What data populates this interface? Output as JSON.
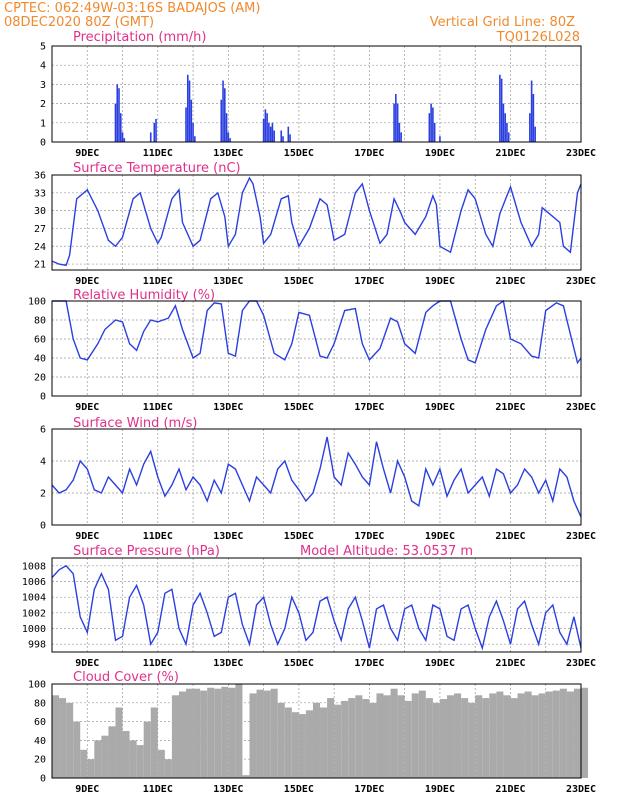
{
  "header": {
    "line1": "CPTEC:   062:49W-03:16S   BADAJOS (AM)",
    "line2": "08DEC2020 80Z (GMT)",
    "grid_note": "Vertical Grid Line: 80Z",
    "run_code": "TQ0126L028"
  },
  "colors": {
    "header": "#f08a2e",
    "title": "#e0308a",
    "series": "#2b3fe0",
    "cloud": "#aaaaaa",
    "grid": "#9a9a9a"
  },
  "chart_data": [
    {
      "id": "precip",
      "type": "bar",
      "title": "Precipitation (mm/h)",
      "ylim": [
        0,
        5
      ],
      "yticks": [
        "0",
        "1",
        "2",
        "3",
        "4",
        "5"
      ],
      "xlim": [
        8,
        23
      ],
      "xticks": [
        "9DEC",
        "11DEC",
        "13DEC",
        "15DEC",
        "17DEC",
        "19DEC",
        "21DEC",
        "23DEC"
      ],
      "x": [
        9.8,
        9.85,
        9.9,
        9.95,
        10.0,
        10.05,
        10.8,
        10.9,
        10.95,
        11.8,
        11.85,
        11.9,
        11.95,
        12.0,
        12.05,
        12.8,
        12.85,
        12.9,
        12.95,
        13.0,
        13.05,
        14.0,
        14.05,
        14.1,
        14.15,
        14.2,
        14.25,
        14.3,
        14.5,
        14.55,
        14.7,
        14.75,
        17.7,
        17.75,
        17.8,
        17.85,
        17.9,
        18.7,
        18.75,
        18.8,
        18.85,
        19.0,
        20.7,
        20.75,
        20.8,
        20.85,
        20.9,
        20.95,
        21.55,
        21.6,
        21.65,
        21.7
      ],
      "values": [
        2.0,
        3.0,
        2.8,
        1.5,
        0.5,
        0.2,
        0.5,
        1.0,
        1.2,
        1.8,
        3.5,
        3.2,
        2.2,
        1.0,
        0.3,
        2.2,
        3.2,
        2.8,
        1.5,
        0.5,
        0.2,
        1.2,
        1.7,
        1.5,
        1.0,
        0.8,
        1.0,
        0.6,
        0.6,
        0.3,
        0.8,
        0.4,
        2.0,
        2.5,
        2.0,
        1.0,
        0.5,
        1.5,
        2.0,
        1.8,
        1.0,
        0.3,
        3.5,
        3.3,
        2.0,
        1.5,
        1.0,
        0.5,
        1.5,
        3.2,
        2.5,
        0.8
      ]
    },
    {
      "id": "temp",
      "type": "line",
      "title": "Surface Temperature (nC)",
      "ylim": [
        20,
        36
      ],
      "yticks": [
        "21",
        "24",
        "27",
        "30",
        "33",
        "36"
      ],
      "ytick_values": [
        21,
        24,
        27,
        30,
        33,
        36
      ],
      "xlim": [
        8,
        23
      ],
      "xticks": [
        "9DEC",
        "11DEC",
        "13DEC",
        "15DEC",
        "17DEC",
        "19DEC",
        "21DEC",
        "23DEC"
      ],
      "x": [
        8.0,
        8.2,
        8.4,
        8.5,
        8.7,
        9.0,
        9.3,
        9.6,
        9.8,
        10.0,
        10.3,
        10.5,
        10.8,
        11.0,
        11.1,
        11.4,
        11.6,
        11.7,
        12.0,
        12.2,
        12.5,
        12.7,
        12.9,
        13.0,
        13.2,
        13.4,
        13.6,
        13.7,
        13.9,
        14.0,
        14.2,
        14.5,
        14.7,
        14.8,
        15.0,
        15.3,
        15.6,
        15.8,
        16.0,
        16.3,
        16.6,
        16.8,
        17.0,
        17.3,
        17.5,
        17.7,
        17.9,
        18.0,
        18.3,
        18.6,
        18.8,
        18.9,
        19.0,
        19.3,
        19.6,
        19.8,
        20.0,
        20.3,
        20.5,
        20.7,
        20.9,
        21.0,
        21.3,
        21.6,
        21.8,
        21.9,
        22.0,
        22.4,
        22.5,
        22.7,
        22.9,
        23.0
      ],
      "values": [
        21.5,
        21.0,
        20.8,
        22.5,
        32.0,
        33.5,
        30.0,
        25.0,
        24.0,
        25.5,
        32.0,
        33.0,
        27.0,
        24.5,
        25.5,
        32.0,
        33.5,
        28.0,
        24.0,
        25.0,
        32.0,
        33.0,
        29.0,
        24.0,
        26.0,
        33.0,
        35.5,
        34.5,
        29.0,
        24.5,
        26.0,
        32.0,
        32.5,
        28.0,
        24.0,
        27.0,
        32.0,
        31.0,
        25.0,
        26.0,
        33.0,
        34.5,
        30.0,
        24.5,
        26.0,
        32.0,
        29.5,
        28.0,
        26.0,
        29.0,
        32.5,
        31.0,
        24.0,
        23.0,
        30.0,
        33.5,
        32.0,
        26.0,
        24.0,
        29.5,
        32.5,
        34.0,
        28.0,
        24.0,
        26.0,
        30.5,
        30.0,
        28.0,
        24.0,
        23.0,
        33.0,
        34.5
      ]
    },
    {
      "id": "rh",
      "type": "line",
      "title": "Relative Humidity (%)",
      "ylim": [
        0,
        100
      ],
      "yticks": [
        "0",
        "20",
        "40",
        "60",
        "80",
        "100"
      ],
      "xlim": [
        8,
        23
      ],
      "xticks": [
        "9DEC",
        "11DEC",
        "13DEC",
        "15DEC",
        "17DEC",
        "19DEC",
        "21DEC",
        "23DEC"
      ],
      "x": [
        8.0,
        8.2,
        8.4,
        8.6,
        8.8,
        9.0,
        9.3,
        9.5,
        9.8,
        10.0,
        10.2,
        10.4,
        10.6,
        10.8,
        11.0,
        11.3,
        11.5,
        11.7,
        12.0,
        12.2,
        12.4,
        12.6,
        12.8,
        13.0,
        13.2,
        13.4,
        13.6,
        13.8,
        14.0,
        14.3,
        14.6,
        14.8,
        15.0,
        15.3,
        15.6,
        15.8,
        16.0,
        16.3,
        16.6,
        16.8,
        17.0,
        17.3,
        17.6,
        17.8,
        18.0,
        18.3,
        18.6,
        18.8,
        19.0,
        19.3,
        19.6,
        19.8,
        20.0,
        20.3,
        20.6,
        20.8,
        21.0,
        21.3,
        21.6,
        21.8,
        22.0,
        22.3,
        22.5,
        22.7,
        22.9,
        23.0
      ],
      "values": [
        100,
        100,
        100,
        60,
        40,
        38,
        55,
        70,
        80,
        78,
        55,
        48,
        68,
        80,
        78,
        82,
        95,
        70,
        40,
        45,
        90,
        98,
        97,
        45,
        42,
        90,
        100,
        100,
        85,
        45,
        38,
        55,
        88,
        85,
        42,
        40,
        55,
        90,
        92,
        55,
        38,
        50,
        82,
        78,
        55,
        45,
        88,
        95,
        100,
        100,
        60,
        38,
        35,
        70,
        95,
        100,
        60,
        55,
        42,
        40,
        90,
        98,
        95,
        65,
        35,
        40
      ]
    },
    {
      "id": "wind",
      "type": "line",
      "title": "Surface Wind (m/s)",
      "ylim": [
        0,
        6
      ],
      "yticks": [
        "0",
        "2",
        "4",
        "6"
      ],
      "ytick_values": [
        0,
        2,
        4,
        6
      ],
      "xlim": [
        8,
        23
      ],
      "xticks": [
        "9DEC",
        "11DEC",
        "13DEC",
        "15DEC",
        "17DEC",
        "19DEC",
        "21DEC",
        "23DEC"
      ],
      "x": [
        8.0,
        8.2,
        8.4,
        8.6,
        8.8,
        9.0,
        9.2,
        9.4,
        9.6,
        9.8,
        10.0,
        10.2,
        10.4,
        10.6,
        10.8,
        11.0,
        11.2,
        11.4,
        11.6,
        11.8,
        12.0,
        12.2,
        12.4,
        12.6,
        12.8,
        13.0,
        13.2,
        13.4,
        13.6,
        13.8,
        14.0,
        14.2,
        14.4,
        14.6,
        14.8,
        15.0,
        15.2,
        15.4,
        15.6,
        15.8,
        16.0,
        16.2,
        16.4,
        16.6,
        16.8,
        17.0,
        17.2,
        17.4,
        17.6,
        17.8,
        18.0,
        18.2,
        18.4,
        18.6,
        18.8,
        19.0,
        19.2,
        19.4,
        19.6,
        19.8,
        20.0,
        20.2,
        20.4,
        20.6,
        20.8,
        21.0,
        21.2,
        21.4,
        21.6,
        21.8,
        22.0,
        22.2,
        22.4,
        22.6,
        22.8,
        23.0
      ],
      "values": [
        2.5,
        2.0,
        2.2,
        2.8,
        4.0,
        3.5,
        2.2,
        2.0,
        3.0,
        2.5,
        2.0,
        3.5,
        2.5,
        3.8,
        4.6,
        3.0,
        1.8,
        2.5,
        3.5,
        2.2,
        3.0,
        2.5,
        1.5,
        2.8,
        2.0,
        3.8,
        3.5,
        2.5,
        1.5,
        3.0,
        2.5,
        2.0,
        3.5,
        4.0,
        2.8,
        2.2,
        1.5,
        2.0,
        3.5,
        5.5,
        3.0,
        2.5,
        4.5,
        3.8,
        3.0,
        2.5,
        5.2,
        3.5,
        2.0,
        4.0,
        3.0,
        1.5,
        1.2,
        3.5,
        2.5,
        3.5,
        1.8,
        2.8,
        3.5,
        2.0,
        2.5,
        3.0,
        1.8,
        3.5,
        3.2,
        2.0,
        2.5,
        3.5,
        3.0,
        2.0,
        2.8,
        1.5,
        3.5,
        3.0,
        1.5,
        0.5
      ]
    },
    {
      "id": "pres",
      "type": "line",
      "title": "Surface Pressure (hPa)",
      "annotation": "Model Altitude: 53.0537 m",
      "ylim": [
        997,
        1009
      ],
      "yticks": [
        "998",
        "1000",
        "1002",
        "1004",
        "1006",
        "1008"
      ],
      "ytick_values": [
        998,
        1000,
        1002,
        1004,
        1006,
        1008
      ],
      "xlim": [
        8,
        23
      ],
      "xticks": [
        "9DEC",
        "11DEC",
        "13DEC",
        "15DEC",
        "17DEC",
        "19DEC",
        "21DEC",
        "23DEC"
      ],
      "x": [
        8.0,
        8.2,
        8.4,
        8.6,
        8.8,
        9.0,
        9.2,
        9.4,
        9.6,
        9.8,
        10.0,
        10.2,
        10.4,
        10.6,
        10.8,
        11.0,
        11.2,
        11.4,
        11.6,
        11.8,
        12.0,
        12.2,
        12.4,
        12.6,
        12.8,
        13.0,
        13.2,
        13.4,
        13.6,
        13.8,
        14.0,
        14.2,
        14.4,
        14.6,
        14.8,
        15.0,
        15.2,
        15.4,
        15.6,
        15.8,
        16.0,
        16.2,
        16.4,
        16.6,
        16.8,
        17.0,
        17.2,
        17.4,
        17.6,
        17.8,
        18.0,
        18.2,
        18.4,
        18.6,
        18.8,
        19.0,
        19.2,
        19.4,
        19.6,
        19.8,
        20.0,
        20.2,
        20.4,
        20.6,
        20.8,
        21.0,
        21.2,
        21.4,
        21.6,
        21.8,
        22.0,
        22.2,
        22.4,
        22.6,
        22.8,
        23.0
      ],
      "values": [
        1006.5,
        1007.5,
        1008.0,
        1007.0,
        1001.5,
        999.5,
        1005.0,
        1007.0,
        1005.0,
        998.5,
        999.0,
        1004.0,
        1005.5,
        1003.0,
        998.0,
        999.5,
        1004.5,
        1005.0,
        1000.0,
        998.0,
        1003.0,
        1004.5,
        1002.0,
        999.0,
        999.5,
        1004.0,
        1004.5,
        1000.5,
        998.0,
        1003.0,
        1004.0,
        1000.5,
        998.0,
        1000.0,
        1004.0,
        1002.0,
        998.5,
        999.5,
        1003.5,
        1004.0,
        1001.0,
        998.5,
        1002.5,
        1004.0,
        1001.0,
        997.5,
        1002.5,
        1003.0,
        1000.0,
        998.5,
        1002.5,
        1003.0,
        1000.0,
        998.5,
        1003.0,
        1002.5,
        999.0,
        998.5,
        1002.5,
        1003.0,
        1000.0,
        997.5,
        1001.5,
        1003.5,
        1001.0,
        998.0,
        1002.5,
        1003.5,
        1000.5,
        998.0,
        1002.0,
        1003.0,
        999.5,
        998.0,
        1001.5,
        997.5
      ]
    },
    {
      "id": "cloud",
      "type": "bar",
      "title": "Cloud Cover (%)",
      "ylim": [
        0,
        100
      ],
      "yticks": [
        "0",
        "20",
        "40",
        "60",
        "80",
        "100"
      ],
      "xlim": [
        8,
        23
      ],
      "xticks": [
        "9DEC",
        "11DEC",
        "13DEC",
        "15DEC",
        "17DEC",
        "19DEC",
        "21DEC",
        "23DEC"
      ],
      "x": [
        8.0,
        8.2,
        8.4,
        8.6,
        8.8,
        9.0,
        9.2,
        9.4,
        9.6,
        9.8,
        10.0,
        10.2,
        10.4,
        10.6,
        10.8,
        11.0,
        11.2,
        11.4,
        11.6,
        11.8,
        12.0,
        12.2,
        12.4,
        12.6,
        12.8,
        13.0,
        13.2,
        13.4,
        13.6,
        13.8,
        14.0,
        14.2,
        14.4,
        14.6,
        14.8,
        15.0,
        15.2,
        15.4,
        15.6,
        15.8,
        16.0,
        16.2,
        16.4,
        16.6,
        16.8,
        17.0,
        17.2,
        17.4,
        17.6,
        17.8,
        18.0,
        18.2,
        18.4,
        18.6,
        18.8,
        19.0,
        19.2,
        19.4,
        19.6,
        19.8,
        20.0,
        20.2,
        20.4,
        20.6,
        20.8,
        21.0,
        21.2,
        21.4,
        21.6,
        21.8,
        22.0,
        22.2,
        22.4,
        22.6,
        22.8,
        23.0
      ],
      "values": [
        88,
        85,
        80,
        60,
        30,
        20,
        40,
        45,
        55,
        75,
        50,
        40,
        35,
        60,
        75,
        30,
        20,
        88,
        92,
        95,
        95,
        93,
        96,
        95,
        97,
        96,
        100,
        3,
        90,
        94,
        93,
        95,
        80,
        75,
        70,
        68,
        72,
        80,
        75,
        85,
        78,
        82,
        85,
        88,
        84,
        80,
        90,
        88,
        95,
        88,
        82,
        90,
        93,
        85,
        80,
        84,
        88,
        90,
        85,
        80,
        88,
        85,
        90,
        92,
        88,
        85,
        90,
        92,
        88,
        90,
        92,
        93,
        95,
        92,
        95,
        96
      ]
    }
  ]
}
